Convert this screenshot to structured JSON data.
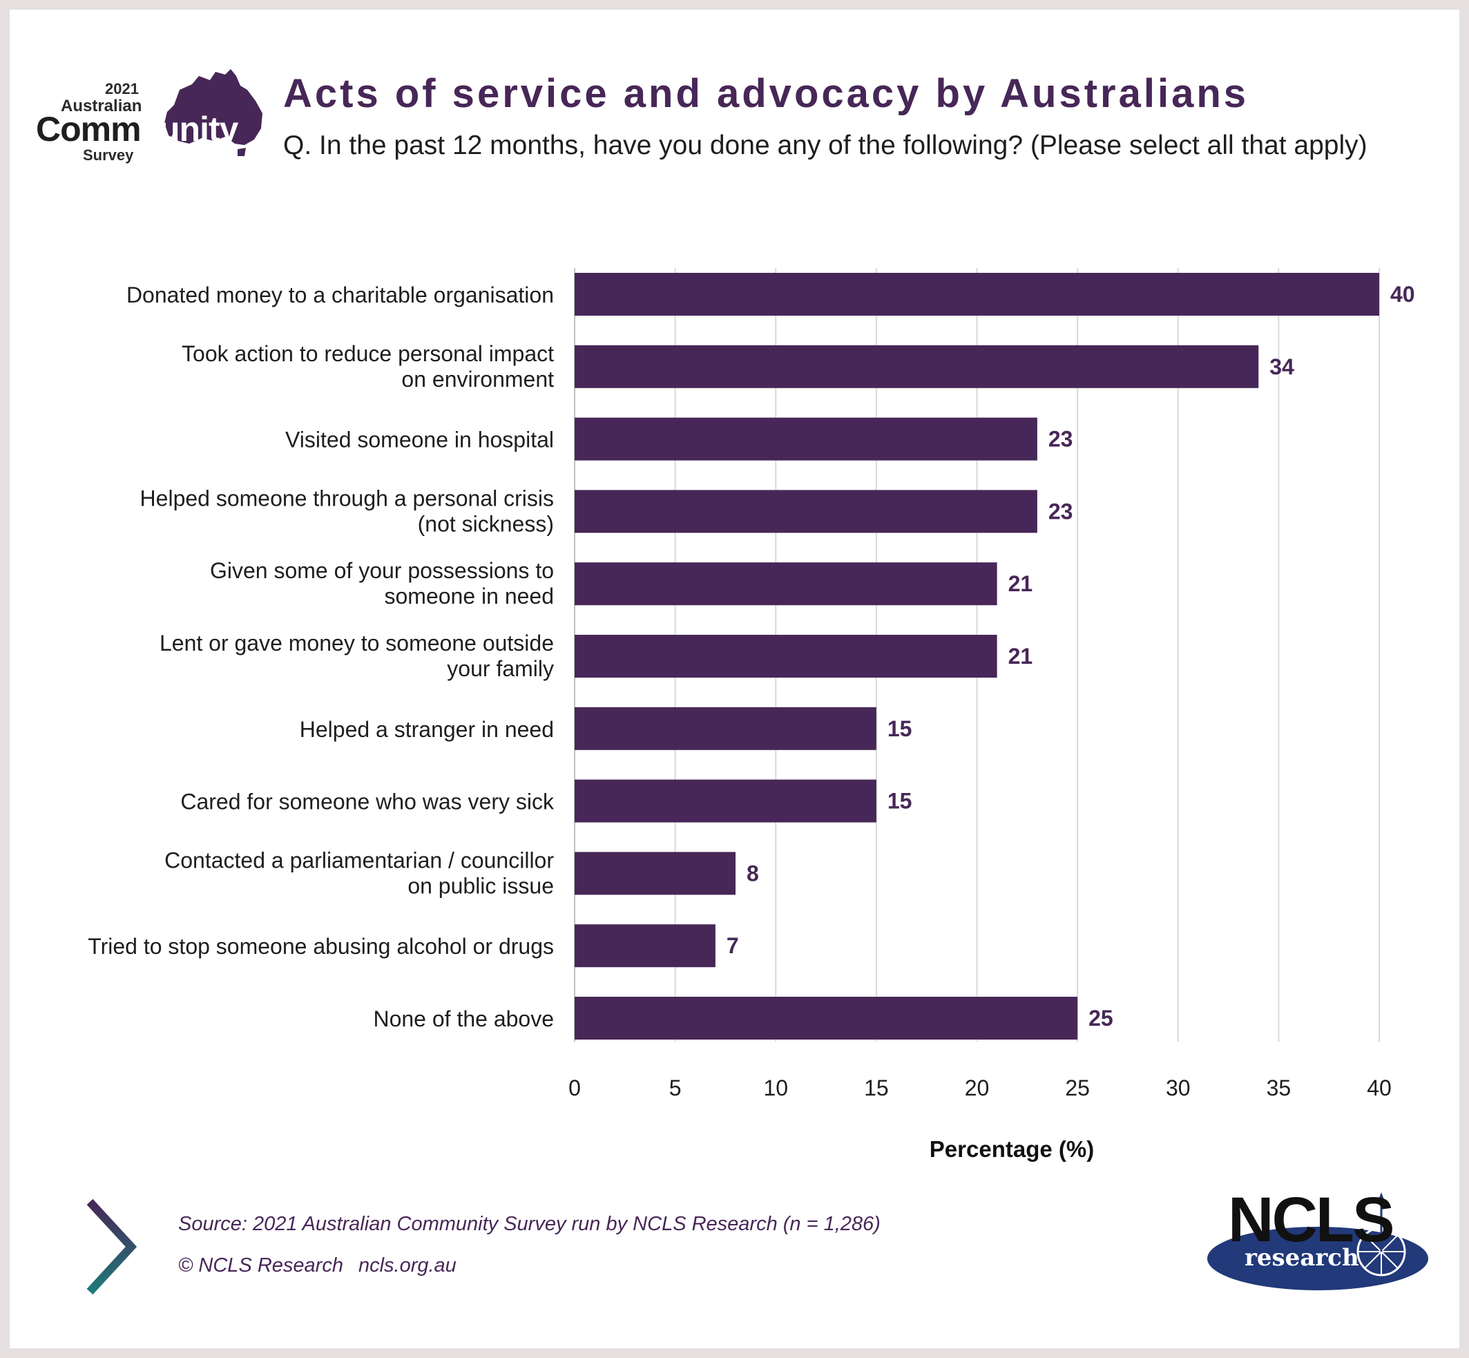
{
  "logo": {
    "year": "2021",
    "line1": "Australian",
    "line2_dark": "Comm",
    "line2_light": "unity",
    "line3": "Survey"
  },
  "header": {
    "title": "Acts of service and advocacy by Australians",
    "subtitle": "Q. In the past 12 months, have you done any of the following? (Please select all that apply)"
  },
  "chart_data": {
    "type": "bar",
    "orientation": "horizontal",
    "categories": [
      [
        "Donated money to a charitable organisation"
      ],
      [
        "Took action to reduce personal impact",
        "on environment"
      ],
      [
        "Visited someone in hospital"
      ],
      [
        "Helped someone through a personal crisis",
        "(not sickness)"
      ],
      [
        "Given some of your possessions to",
        "someone in need"
      ],
      [
        "Lent or gave money to someone outside",
        "your family"
      ],
      [
        "Helped a stranger in need"
      ],
      [
        "Cared for someone who was very sick"
      ],
      [
        "Contacted a parliamentarian / councillor",
        "on public issue"
      ],
      [
        "Tried to stop someone abusing alcohol or drugs"
      ],
      [
        "None of the above"
      ]
    ],
    "values": [
      40,
      34,
      23,
      23,
      21,
      21,
      15,
      15,
      8,
      7,
      25
    ],
    "xlabel": "Percentage (%)",
    "xlim": [
      0,
      40
    ],
    "xticks": [
      0,
      5,
      10,
      15,
      20,
      25,
      30,
      35,
      40
    ],
    "grid": "vertical",
    "legend": "none",
    "bar_color": "#472757",
    "label_color": "#472757"
  },
  "footer": {
    "source": "Source: 2021 Australian Community Survey run by NCLS Research (n = 1,286)",
    "copyright": "© NCLS Research",
    "website": "ncls.org.au",
    "brand_top": "NCLS",
    "brand_bottom": "research"
  },
  "colors": {
    "accent": "#472757",
    "chevron_top": "#472757",
    "chevron_bottom": "#1f7a7a",
    "brand_blue": "#22397a"
  }
}
